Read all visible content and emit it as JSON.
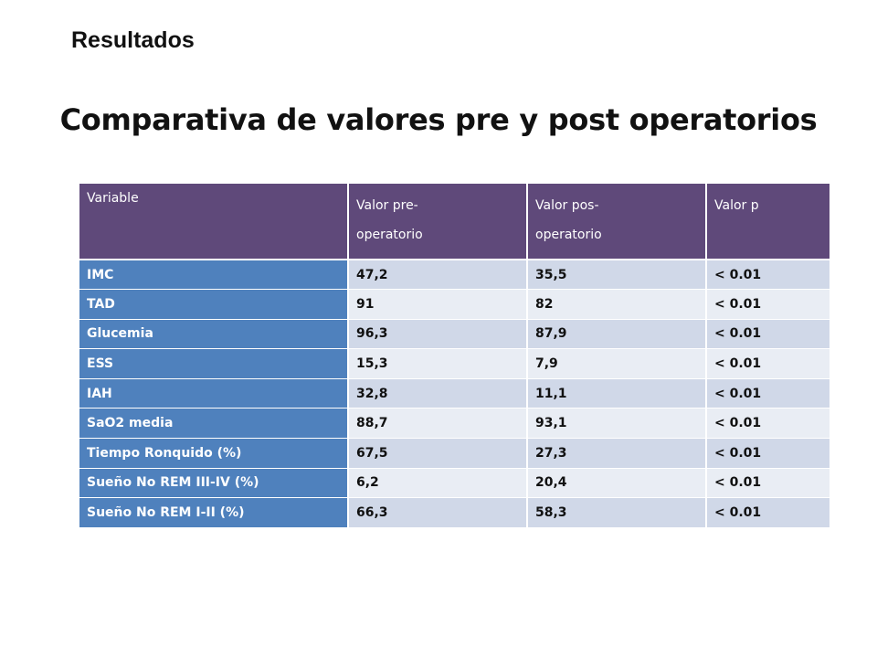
{
  "section_label": "Resultados",
  "title": "Comparativa de valores pre y post operatorios",
  "colors": {
    "header_bg": "#5f497a",
    "variable_col_bg": "#4f81bd",
    "row_band_1": "#d0d8e8",
    "row_band_2": "#e9edf4"
  },
  "table": {
    "headers": {
      "variable": "Variable",
      "pre_line1": "Valor pre-",
      "pre_line2": "operatorio",
      "post_line1": "Valor pos-",
      "post_line2": "operatorio",
      "p": "Valor  p"
    },
    "rows": [
      {
        "variable": "IMC",
        "pre": "47,2",
        "post": "35,5",
        "p": "< 0.01"
      },
      {
        "variable": "TAD",
        "pre": "91",
        "post": "82",
        "p": "< 0.01"
      },
      {
        "variable": "Glucemia",
        "pre": "96,3",
        "post": "87,9",
        "p": "< 0.01"
      },
      {
        "variable": "ESS",
        "pre": "15,3",
        "post": "7,9",
        "p": "< 0.01"
      },
      {
        "variable": "IAH",
        "pre": "32,8",
        "post": "11,1",
        "p": "< 0.01"
      },
      {
        "variable": "SaO2 media",
        "pre": "88,7",
        "post": "93,1",
        "p": "< 0.01"
      },
      {
        "variable": "Tiempo Ronquido  (%)",
        "pre": "67,5",
        "post": "27,3",
        "p": "< 0.01"
      },
      {
        "variable": "Sueño No REM III-IV (%)",
        "pre": "6,2",
        "post": "20,4",
        "p": "< 0.01"
      },
      {
        "variable": "Sueño No REM  I-II (%)",
        "pre": "66,3",
        "post": "58,3",
        "p": "< 0.01"
      }
    ]
  }
}
